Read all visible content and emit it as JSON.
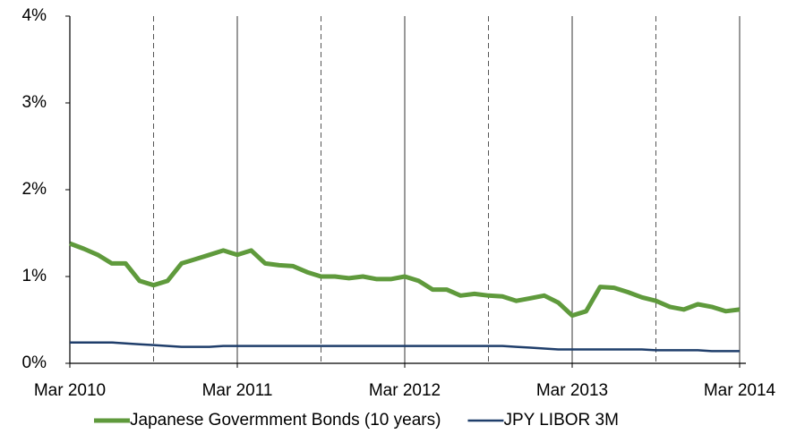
{
  "chart_data": {
    "type": "line",
    "x": [
      "2010-03",
      "2010-04",
      "2010-05",
      "2010-06",
      "2010-07",
      "2010-08",
      "2010-09",
      "2010-10",
      "2010-11",
      "2010-12",
      "2011-01",
      "2011-02",
      "2011-03",
      "2011-04",
      "2011-05",
      "2011-06",
      "2011-07",
      "2011-08",
      "2011-09",
      "2011-10",
      "2011-11",
      "2011-12",
      "2012-01",
      "2012-02",
      "2012-03",
      "2012-04",
      "2012-05",
      "2012-06",
      "2012-07",
      "2012-08",
      "2012-09",
      "2012-10",
      "2012-11",
      "2012-12",
      "2013-01",
      "2013-02",
      "2013-03",
      "2013-04",
      "2013-05",
      "2013-06",
      "2013-07",
      "2013-08",
      "2013-09",
      "2013-10",
      "2013-11",
      "2013-12",
      "2014-01",
      "2014-02",
      "2014-03"
    ],
    "series": [
      {
        "name": "Japanese Govermment Bonds (10 years)",
        "color": "#5f9a3c",
        "values": [
          1.38,
          1.32,
          1.25,
          1.15,
          1.15,
          0.95,
          0.9,
          0.95,
          1.15,
          1.2,
          1.25,
          1.3,
          1.25,
          1.3,
          1.15,
          1.13,
          1.12,
          1.05,
          1.0,
          1.0,
          0.98,
          1.0,
          0.97,
          0.97,
          1.0,
          0.95,
          0.85,
          0.85,
          0.78,
          0.8,
          0.78,
          0.77,
          0.72,
          0.75,
          0.78,
          0.7,
          0.55,
          0.6,
          0.88,
          0.87,
          0.82,
          0.76,
          0.72,
          0.65,
          0.62,
          0.68,
          0.65,
          0.6,
          0.62
        ]
      },
      {
        "name": "JPY LIBOR 3M",
        "color": "#1f3e6b",
        "values": [
          0.24,
          0.24,
          0.24,
          0.24,
          0.23,
          0.22,
          0.21,
          0.2,
          0.19,
          0.19,
          0.19,
          0.2,
          0.2,
          0.2,
          0.2,
          0.2,
          0.2,
          0.2,
          0.2,
          0.2,
          0.2,
          0.2,
          0.2,
          0.2,
          0.2,
          0.2,
          0.2,
          0.2,
          0.2,
          0.2,
          0.2,
          0.2,
          0.19,
          0.18,
          0.17,
          0.16,
          0.16,
          0.16,
          0.16,
          0.16,
          0.16,
          0.16,
          0.15,
          0.15,
          0.15,
          0.15,
          0.14,
          0.14,
          0.14
        ]
      }
    ],
    "xlim": [
      "2010-03",
      "2014-03"
    ],
    "xticks": [
      {
        "value": "2010-03",
        "label": "Mar 2010"
      },
      {
        "value": "2011-03",
        "label": "Mar 2011"
      },
      {
        "value": "2012-03",
        "label": "Mar 2012"
      },
      {
        "value": "2013-03",
        "label": "Mar 2013"
      },
      {
        "value": "2014-03",
        "label": "Mar 2014"
      }
    ],
    "minor_xticks": [
      "2010-09",
      "2011-09",
      "2012-09",
      "2013-09"
    ],
    "ylim": [
      0,
      4
    ],
    "yticks": [
      {
        "value": 0,
        "label": "0%"
      },
      {
        "value": 1,
        "label": "1%"
      },
      {
        "value": 2,
        "label": "2%"
      },
      {
        "value": 3,
        "label": "3%"
      },
      {
        "value": 4,
        "label": "4%"
      }
    ],
    "grid": true,
    "legend": "bottom"
  }
}
